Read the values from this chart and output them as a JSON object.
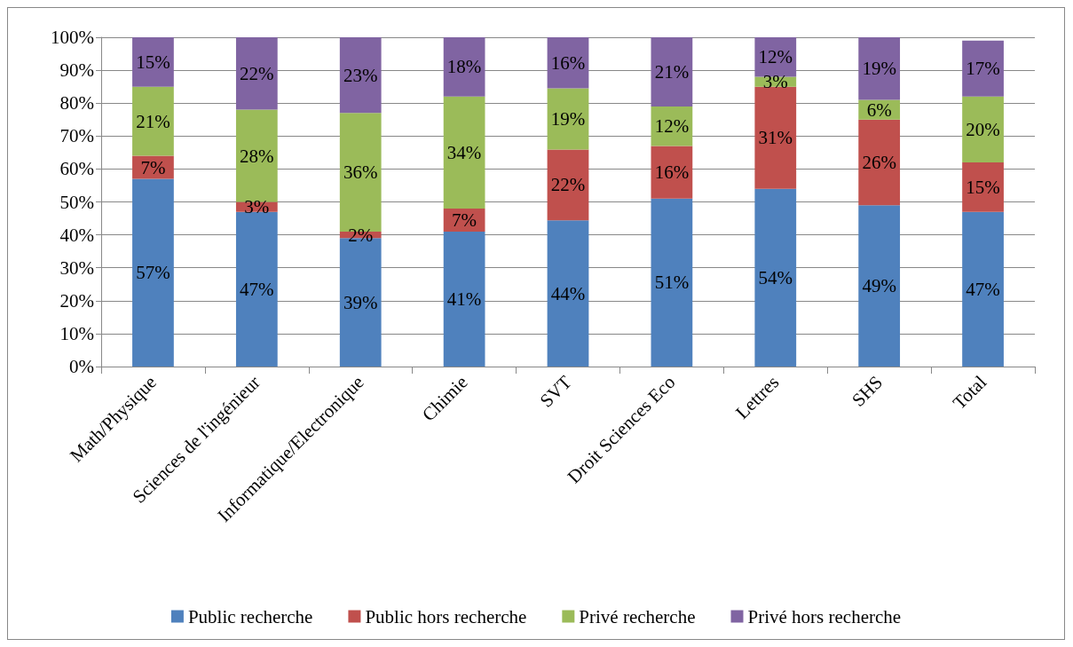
{
  "chart_data": {
    "type": "bar",
    "stacked": true,
    "categories": [
      "Math/Physique",
      "Sciences de l'ingénieur",
      "Informatique/Electronique",
      "Chimie",
      "SVT",
      "Droit Sciences Eco",
      "Lettres",
      "SHS",
      "Total"
    ],
    "series": [
      {
        "name": "Public recherche",
        "color": "#4f81bd",
        "values": [
          57,
          47,
          39,
          41,
          44.4,
          51,
          54,
          49,
          47
        ],
        "value_labels": [
          "57%",
          "47%",
          "39%",
          "41%",
          "44%",
          "51%",
          "54%",
          "49%",
          "47%"
        ]
      },
      {
        "name": "Public hors recherche",
        "color": "#c0504d",
        "values": [
          7,
          3,
          2,
          7,
          21.5,
          16,
          31,
          26,
          15
        ],
        "value_labels": [
          "7%",
          "3%",
          "2%",
          "7%",
          "22%",
          "16%",
          "31%",
          "26%",
          "15%"
        ]
      },
      {
        "name": "Privé recherche",
        "color": "#9bbb59",
        "values": [
          21,
          28,
          36,
          34,
          18.6,
          12,
          3,
          6,
          20
        ],
        "value_labels": [
          "21%",
          "28%",
          "36%",
          "34%",
          "19%",
          "12%",
          "3%",
          "6%",
          "20%"
        ]
      },
      {
        "name": "Privé hors recherche",
        "color": "#8064a2",
        "values": [
          15,
          22,
          23,
          18,
          15.5,
          21,
          12,
          19,
          17
        ],
        "value_labels": [
          "15%",
          "22%",
          "23%",
          "18%",
          "16%",
          "21%",
          "12%",
          "19%",
          "17%"
        ]
      }
    ],
    "ylim": [
      0,
      100
    ],
    "yticks": [
      {
        "value": 0,
        "label": "0%"
      },
      {
        "value": 10,
        "label": "10%"
      },
      {
        "value": 20,
        "label": "20%"
      },
      {
        "value": 30,
        "label": "30%"
      },
      {
        "value": 40,
        "label": "40%"
      },
      {
        "value": 50,
        "label": "50%"
      },
      {
        "value": 60,
        "label": "60%"
      },
      {
        "value": 70,
        "label": "70%"
      },
      {
        "value": 80,
        "label": "80%"
      },
      {
        "value": 90,
        "label": "90%"
      },
      {
        "value": 100,
        "label": "100%"
      }
    ],
    "grid": "y",
    "legend": "bottom"
  }
}
